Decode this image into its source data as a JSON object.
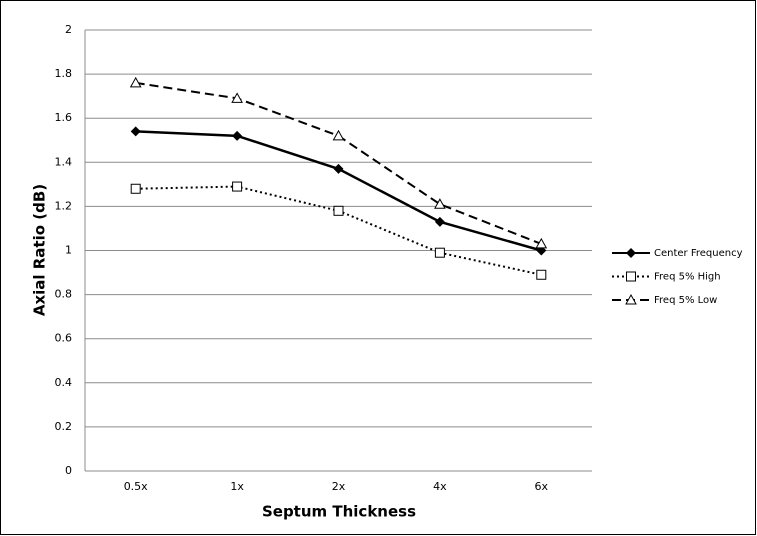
{
  "chart_data": {
    "type": "line",
    "x_label": "Septum Thickness",
    "y_label": "Axial Ratio (dB)",
    "categories": [
      "0.5x",
      "1x",
      "2x",
      "4x",
      "6x"
    ],
    "series": [
      {
        "name": "Center Frequency",
        "color": "#000000",
        "marker": "diamond",
        "line_style": "solid",
        "values": [
          1.54,
          1.52,
          1.37,
          1.13,
          1.0
        ]
      },
      {
        "name": "Freq 5% High",
        "color": "#000000",
        "marker": "square",
        "line_style": "dotted",
        "values": [
          1.28,
          1.29,
          1.18,
          0.99,
          0.89
        ]
      },
      {
        "name": "Freq 5% Low",
        "color": "#000000",
        "marker": "triangle",
        "line_style": "dashed",
        "values": [
          1.76,
          1.69,
          1.52,
          1.21,
          1.03
        ]
      }
    ],
    "ylim": [
      0,
      2
    ],
    "yticks": [
      0,
      0.2,
      0.4,
      0.6,
      0.8,
      1,
      1.2,
      1.4,
      1.6,
      1.8,
      2
    ],
    "grid": true,
    "legend": "right"
  }
}
